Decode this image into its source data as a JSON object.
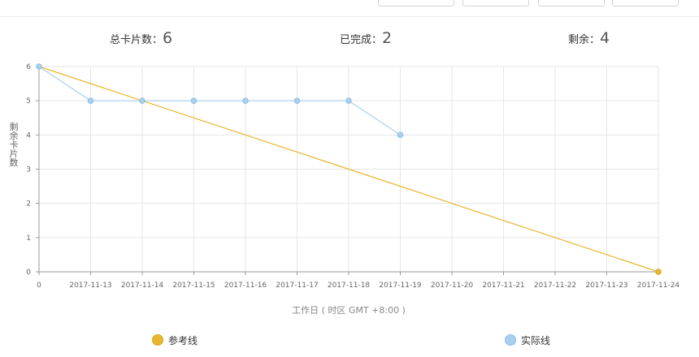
{
  "stats": {
    "total_label": "总卡片数：",
    "total_value": "6",
    "done_label": "已完成：",
    "done_value": "2",
    "remain_label": "剩余：",
    "remain_value": "4"
  },
  "chart_data": {
    "type": "line",
    "ylabel": "剩余卡片数",
    "xlabel": "工作日 ( 时区 GMT +8:00 )",
    "categories": [
      "0",
      "2017-11-13",
      "2017-11-14",
      "2017-11-15",
      "2017-11-16",
      "2017-11-17",
      "2017-11-18",
      "2017-11-19",
      "2017-11-20",
      "2017-11-21",
      "2017-11-22",
      "2017-11-23",
      "2017-11-24"
    ],
    "ylim": [
      0,
      6
    ],
    "yticks": [
      0,
      1,
      2,
      3,
      4,
      5,
      6
    ],
    "grid": true,
    "series": [
      {
        "name": "参考线",
        "color": "#e8b730",
        "values": [
          6,
          null,
          null,
          null,
          null,
          null,
          null,
          null,
          null,
          null,
          null,
          null,
          0
        ]
      },
      {
        "name": "实际线",
        "color": "#a9d0ef",
        "values": [
          6,
          5,
          5,
          5,
          5,
          5,
          5,
          4,
          null,
          null,
          null,
          null,
          null
        ]
      }
    ]
  }
}
